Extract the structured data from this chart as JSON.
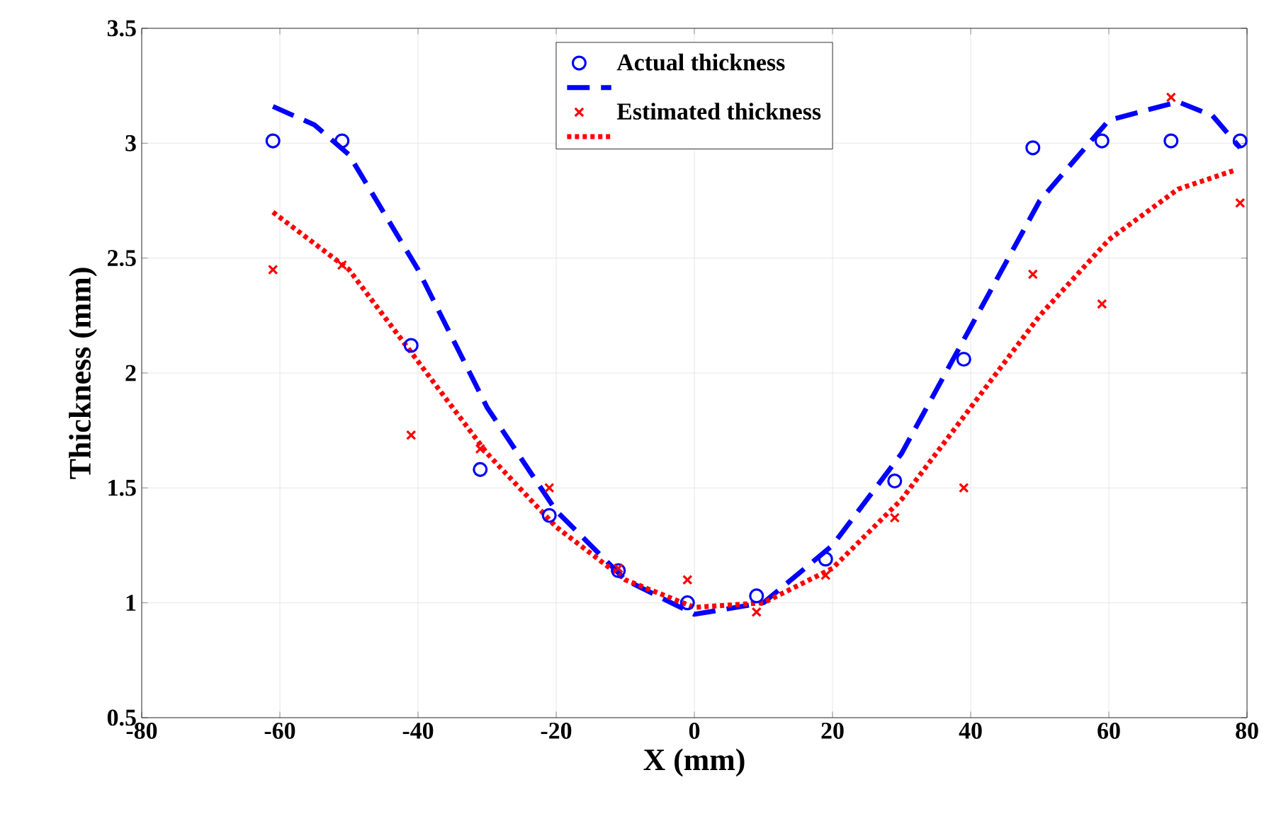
{
  "chart_data": {
    "type": "scatter",
    "xlabel": "X (mm)",
    "ylabel": "Thickness (mm)",
    "xlim": [
      -80,
      80
    ],
    "ylim": [
      0.5,
      3.5
    ],
    "xticks": [
      -80,
      -60,
      -40,
      -20,
      0,
      20,
      40,
      60,
      80
    ],
    "yticks": [
      0.5,
      1,
      1.5,
      2,
      2.5,
      3,
      3.5
    ],
    "grid": true,
    "legend": "top",
    "series": [
      {
        "name": "Actual thickness",
        "marker": "circle",
        "color": "#0000ff",
        "x": [
          -61,
          -51,
          -41,
          -31,
          -21,
          -11,
          -1,
          9,
          19,
          29,
          39,
          49,
          59,
          69,
          79
        ],
        "values": [
          3.01,
          3.01,
          2.12,
          1.58,
          1.38,
          1.14,
          1.0,
          1.03,
          1.19,
          1.53,
          2.06,
          2.98,
          3.01,
          3.01,
          3.01
        ]
      },
      {
        "type": "line",
        "line_style": "dashed",
        "color": "#0000ff",
        "x": [
          -61,
          -55,
          -50,
          -40,
          -30,
          -20,
          -10,
          0,
          10,
          20,
          30,
          40,
          50,
          60,
          70,
          75,
          79
        ],
        "values": [
          3.16,
          3.08,
          2.95,
          2.45,
          1.85,
          1.4,
          1.1,
          0.95,
          1.0,
          1.25,
          1.65,
          2.2,
          2.75,
          3.1,
          3.18,
          3.12,
          2.98
        ]
      },
      {
        "name": "Estimated thickness",
        "marker": "cross",
        "color": "#ff0000",
        "x": [
          -61,
          -51,
          -41,
          -31,
          -21,
          -11,
          -1,
          9,
          19,
          29,
          39,
          49,
          59,
          69,
          79
        ],
        "values": [
          2.45,
          2.47,
          1.73,
          1.67,
          1.5,
          1.15,
          1.1,
          0.96,
          1.12,
          1.37,
          1.5,
          2.43,
          2.3,
          3.2,
          2.74
        ]
      },
      {
        "type": "line",
        "line_style": "dotted",
        "color": "#ff0000",
        "x": [
          -61,
          -50,
          -40,
          -30,
          -20,
          -10,
          0,
          10,
          20,
          30,
          40,
          50,
          60,
          70,
          78
        ],
        "values": [
          2.7,
          2.45,
          2.05,
          1.65,
          1.33,
          1.1,
          0.98,
          1.0,
          1.15,
          1.45,
          1.85,
          2.25,
          2.58,
          2.8,
          2.88
        ]
      }
    ]
  }
}
